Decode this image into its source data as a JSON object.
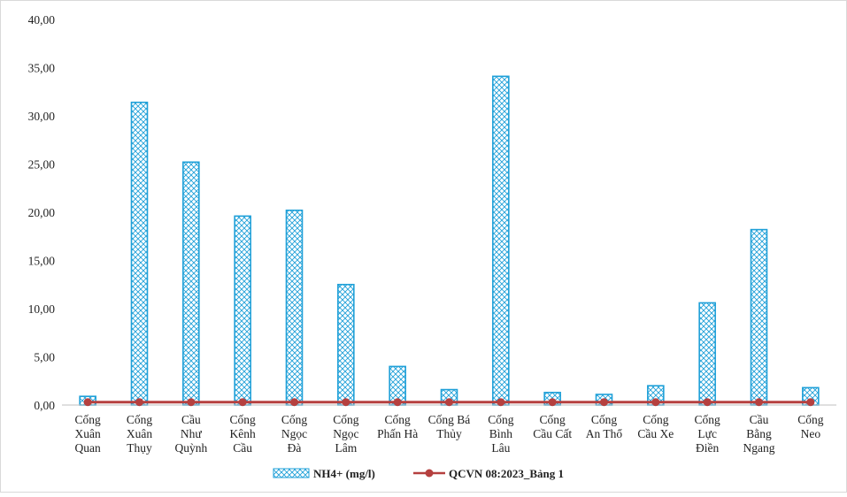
{
  "chart_data": {
    "type": "bar",
    "categories": [
      [
        "Cống",
        "Xuân",
        "Quan"
      ],
      [
        "Cống",
        "Xuân",
        "Thụy"
      ],
      [
        "Cầu",
        "Như",
        "Quỳnh"
      ],
      [
        "Cống",
        "Kênh",
        "Cầu"
      ],
      [
        "Cống",
        "Ngọc",
        "Đà"
      ],
      [
        "Cống",
        "Ngọc",
        "Lâm"
      ],
      [
        "Cống",
        "Phấn Hà"
      ],
      [
        "Cống Bá",
        "Thủy"
      ],
      [
        "Cống",
        "Bình",
        "Lâu"
      ],
      [
        "Cống",
        "Cầu Cất"
      ],
      [
        "Cống",
        "An Thổ"
      ],
      [
        "Cống",
        "Cầu Xe"
      ],
      [
        "Cống",
        "Lực",
        "Điền"
      ],
      [
        "Cầu",
        "Bằng",
        "Ngang"
      ],
      [
        "Cống",
        "Neo"
      ]
    ],
    "series": [
      {
        "name": "NH4+ (mg/l)",
        "type": "bar",
        "values": [
          0.9,
          31.4,
          25.2,
          19.6,
          20.2,
          12.5,
          4.0,
          1.6,
          34.1,
          1.3,
          1.1,
          2.0,
          10.6,
          18.2,
          1.8
        ]
      },
      {
        "name": "QCVN 08:2023_Bảng 1",
        "type": "line",
        "values": [
          0.3,
          0.3,
          0.3,
          0.3,
          0.3,
          0.3,
          0.3,
          0.3,
          0.3,
          0.3,
          0.3,
          0.3,
          0.3,
          0.3,
          0.3
        ]
      }
    ],
    "y_ticks": [
      "0,00",
      "5,00",
      "10,00",
      "15,00",
      "20,00",
      "25,00",
      "30,00",
      "35,00",
      "40,00"
    ],
    "ylim": [
      0,
      40
    ],
    "grid": false,
    "legend_position": "bottom",
    "colors": {
      "bar": "#1fa0d8",
      "line": "#b5403f",
      "axis": "#bfbfbf",
      "frame": "#d9d9d9"
    }
  }
}
